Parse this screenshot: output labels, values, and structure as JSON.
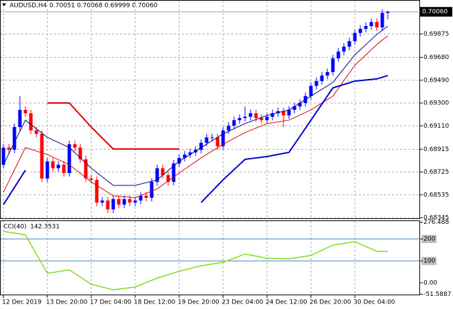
{
  "header": {
    "symbol": "AUDUSD,H4",
    "ohlc": "0.70051 0.70068 0.69999 0.70060"
  },
  "chart_data": [
    {
      "type": "candlestick",
      "categories": [
        "12 Dec 2019",
        null,
        null,
        null,
        null,
        null,
        null,
        null,
        "13 Dec 20:00",
        null,
        null,
        null,
        null,
        null,
        null,
        null,
        "17 Dec 04:00",
        null,
        null,
        null,
        null,
        null,
        null,
        null,
        "18 Dec 12:00",
        null,
        null,
        null,
        null,
        null,
        null,
        null,
        "19 Dec 20:00",
        null,
        null,
        null,
        null,
        null,
        null,
        null,
        "23 Dec 04:00",
        null,
        null,
        null,
        null,
        null,
        null,
        null,
        "24 Dec 12:00",
        null,
        null,
        null,
        null,
        null,
        null,
        null,
        "26 Dec 20:00",
        null,
        null,
        null,
        null,
        null,
        null,
        null,
        "30 Dec 04:00",
        null,
        null,
        null,
        null,
        null,
        null
      ],
      "open": [
        0.68786,
        0.68929,
        0.68911,
        0.691,
        0.69243,
        0.69215,
        0.69072,
        0.69043,
        0.68671,
        0.68814,
        0.68757,
        0.68786,
        0.68717,
        0.68957,
        0.68929,
        0.68831,
        0.68671,
        0.6866,
        0.68471,
        0.68488,
        0.68414,
        0.685,
        0.68454,
        0.685,
        0.68471,
        0.68488,
        0.68528,
        0.68511,
        0.68643,
        0.68757,
        0.687,
        0.68643,
        0.68797,
        0.68843,
        0.68871,
        0.68889,
        0.68911,
        0.68969,
        0.69014,
        0.69014,
        0.6894,
        0.69072,
        0.69112,
        0.69157,
        0.69175,
        0.69186,
        0.69215,
        0.69175,
        0.69157,
        0.69186,
        0.69215,
        0.69232,
        0.69197,
        0.69243,
        0.69272,
        0.693,
        0.69358,
        0.69443,
        0.69483,
        0.69529,
        0.69558,
        0.69672,
        0.69729,
        0.6977,
        0.69815,
        0.69884,
        0.69918,
        0.69941,
        0.69975,
        0.6993,
        0.70051
      ],
      "high": [
        0.68959,
        0.68959,
        0.6913,
        0.69358,
        0.69273,
        0.69245,
        0.69102,
        0.69073,
        0.68844,
        0.68844,
        0.68816,
        0.68816,
        0.68987,
        0.68987,
        0.68959,
        0.68861,
        0.68701,
        0.6869,
        0.68518,
        0.68518,
        0.6853,
        0.6853,
        0.6853,
        0.6853,
        0.68518,
        0.68558,
        0.68558,
        0.68673,
        0.68787,
        0.68787,
        0.6873,
        0.68827,
        0.68873,
        0.68901,
        0.68919,
        0.68941,
        0.68999,
        0.69044,
        0.69044,
        0.69044,
        0.69102,
        0.69142,
        0.69187,
        0.69205,
        0.69272,
        0.69245,
        0.69245,
        0.69205,
        0.69216,
        0.69245,
        0.69262,
        0.69262,
        0.69273,
        0.69302,
        0.6933,
        0.69388,
        0.69473,
        0.69513,
        0.69559,
        0.69588,
        0.69702,
        0.69759,
        0.698,
        0.69845,
        0.69914,
        0.69948,
        0.69971,
        0.70005,
        0.70005,
        0.70081,
        0.70068
      ],
      "low": [
        0.68756,
        0.68881,
        0.68881,
        0.6907,
        0.69185,
        0.69042,
        0.69013,
        0.68641,
        0.68641,
        0.68727,
        0.68727,
        0.68687,
        0.68687,
        0.68899,
        0.68801,
        0.68641,
        0.6863,
        0.68441,
        0.68441,
        0.68384,
        0.68384,
        0.68424,
        0.68424,
        0.68441,
        0.68441,
        0.68458,
        0.68481,
        0.68481,
        0.68613,
        0.6867,
        0.68613,
        0.68613,
        0.68767,
        0.68813,
        0.68841,
        0.68859,
        0.68881,
        0.68939,
        0.68984,
        0.6891,
        0.6891,
        0.69042,
        0.69082,
        0.69127,
        0.69145,
        0.69156,
        0.69145,
        0.69127,
        0.69127,
        0.69156,
        0.69185,
        0.691,
        0.69167,
        0.69213,
        0.69242,
        0.6927,
        0.69328,
        0.69413,
        0.69453,
        0.69499,
        0.69528,
        0.69642,
        0.69699,
        0.6974,
        0.69785,
        0.69854,
        0.69888,
        0.69911,
        0.699,
        0.699,
        0.69999
      ],
      "close": [
        0.68929,
        0.68911,
        0.691,
        0.69243,
        0.69215,
        0.69072,
        0.69043,
        0.68671,
        0.68814,
        0.68757,
        0.68786,
        0.68717,
        0.68957,
        0.68929,
        0.68831,
        0.68671,
        0.6866,
        0.68471,
        0.68488,
        0.68414,
        0.685,
        0.68454,
        0.685,
        0.68471,
        0.68488,
        0.68528,
        0.68511,
        0.68643,
        0.68757,
        0.687,
        0.68643,
        0.68797,
        0.68843,
        0.68871,
        0.68889,
        0.68911,
        0.68969,
        0.69014,
        0.69014,
        0.6894,
        0.69072,
        0.69112,
        0.69157,
        0.69175,
        0.69186,
        0.69215,
        0.69175,
        0.69157,
        0.69186,
        0.69215,
        0.69232,
        0.69197,
        0.69243,
        0.69272,
        0.693,
        0.69358,
        0.69443,
        0.69483,
        0.69529,
        0.69558,
        0.69672,
        0.69729,
        0.6977,
        0.69815,
        0.69884,
        0.69918,
        0.69941,
        0.69975,
        0.6993,
        0.70051,
        0.7006
      ],
      "up_color": "#0000ff",
      "down_color": "#ff0000",
      "ylim": [
        0.68345,
        0.70147
      ],
      "yticks": [
        0.69875,
        {
          "value": 0.6968,
          "label": "0.69680"
        },
        {
          "value": 0.6949,
          "label": "0.69490"
        },
        {
          "value": 0.693,
          "label": "0.69300"
        },
        {
          "value": 0.6911,
          "label": "0.69110"
        },
        0.68915,
        0.68725,
        0.68535,
        0.68345
      ],
      "price_tag": {
        "value": 0.7006,
        "label": "0.70060"
      },
      "grid": true,
      "overlays": {
        "x": [
          0,
          4,
          8,
          12,
          16,
          20,
          24,
          28,
          32,
          36,
          40,
          44,
          48,
          52,
          56,
          60,
          64,
          68,
          70
        ],
        "series": [
          {
            "color": "#000080",
            "width": 1,
            "values": [
              0.68786,
              0.69157,
              0.69014,
              0.68929,
              0.68757,
              0.68614,
              0.68614,
              0.6866,
              0.68814,
              0.68929,
              0.69043,
              0.69129,
              0.69197,
              0.69243,
              0.69358,
              0.69472,
              0.69701,
              0.69872,
              0.69941
            ]
          },
          {
            "color": "#dd0000",
            "width": 1,
            "values": [
              0.68557,
              0.68929,
              0.68871,
              0.68786,
              0.68643,
              0.68528,
              0.68511,
              0.68585,
              0.68717,
              0.68843,
              0.68957,
              0.69054,
              0.69129,
              0.69157,
              0.69243,
              0.69358,
              0.69615,
              0.69787,
              0.69861
            ]
          },
          {
            "color": "#0000cc",
            "width": 2,
            "values": [
              0.68454,
              0.6874,
              null,
              null,
              null,
              null,
              null,
              null,
              null,
              0.68471,
              0.6866,
              0.68831,
              0.68854,
              0.68889,
              0.69157,
              0.69426,
              0.69483,
              0.69501,
              0.69529
            ]
          },
          {
            "color": "#dd0000",
            "width": 2,
            "values": [
              null,
              null,
              0.693,
              0.693,
              0.691,
              0.68917,
              0.68917,
              0.68917,
              0.68917,
              null,
              null,
              null,
              null,
              null,
              null,
              null,
              null,
              null,
              null
            ]
          }
        ]
      }
    },
    {
      "type": "line",
      "title": "CCI(40)",
      "x": [
        0,
        4,
        8,
        12,
        16,
        20,
        24,
        28,
        32,
        36,
        40,
        44,
        48,
        52,
        56,
        60,
        64,
        68,
        70
      ],
      "series": [
        {
          "color": "#7fdc1e",
          "values": [
            234.4,
            218.8,
            43.8,
            59.4,
            -6.3,
            -31.3,
            -18.8,
            21.9,
            53.1,
            78.1,
            93.8,
            131.3,
            112.5,
            109.4,
            125,
            171.9,
            187.5,
            143.8,
            142.3531
          ]
        }
      ],
      "ylim": [
        -51.5887,
        276.488
      ],
      "yticks": [
        276.488,
        200,
        100,
        {
          "value": 0,
          "label": "0.00"
        },
        -51.5887
      ],
      "level_color": "#4682b4"
    }
  ]
}
